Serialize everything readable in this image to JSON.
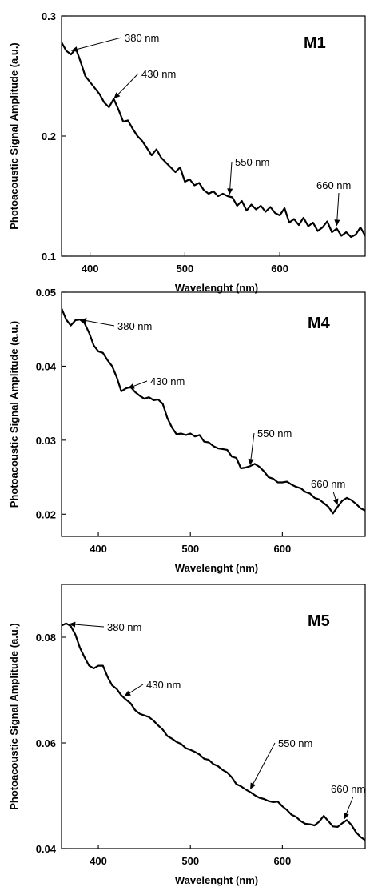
{
  "chart_data": [
    {
      "type": "line",
      "panel_label": "M1",
      "xlabel": "Wavelenght (nm)",
      "ylabel": "Photoacoustic Signal Amplitude (a.u.)",
      "xlim": [
        370,
        690
      ],
      "ylim": [
        0.1,
        0.3
      ],
      "xticks": [
        400,
        500,
        600
      ],
      "yticks": [
        0.1,
        0.2,
        0.3
      ],
      "ytick_labels": [
        "0.1",
        "0.2",
        "0.3"
      ],
      "series": [
        {
          "x": [
            370,
            375,
            380,
            385,
            390,
            395,
            400,
            405,
            410,
            415,
            420,
            425,
            430,
            435,
            440,
            445,
            450,
            455,
            460,
            465,
            470,
            475,
            480,
            485,
            490,
            495,
            500,
            505,
            510,
            515,
            520,
            525,
            530,
            535,
            540,
            545,
            550,
            555,
            560,
            565,
            570,
            575,
            580,
            585,
            590,
            595,
            600,
            605,
            610,
            615,
            620,
            625,
            630,
            635,
            640,
            645,
            650,
            655,
            660,
            665,
            670,
            675,
            680,
            685,
            690
          ],
          "y": [
            0.278,
            0.271,
            0.268,
            0.273,
            0.262,
            0.25,
            0.245,
            0.24,
            0.235,
            0.228,
            0.224,
            0.231,
            0.222,
            0.212,
            0.213,
            0.206,
            0.2,
            0.196,
            0.19,
            0.184,
            0.189,
            0.182,
            0.178,
            0.174,
            0.17,
            0.174,
            0.162,
            0.164,
            0.159,
            0.161,
            0.155,
            0.152,
            0.154,
            0.15,
            0.152,
            0.15,
            0.149,
            0.142,
            0.146,
            0.138,
            0.143,
            0.139,
            0.142,
            0.137,
            0.141,
            0.136,
            0.134,
            0.14,
            0.128,
            0.131,
            0.126,
            0.132,
            0.125,
            0.128,
            0.121,
            0.124,
            0.129,
            0.12,
            0.123,
            0.117,
            0.12,
            0.116,
            0.118,
            0.124,
            0.117
          ]
        }
      ],
      "annotations": [
        {
          "text": "380 nm",
          "x": 380,
          "y": 0.271
        },
        {
          "text": "430 nm",
          "x": 425,
          "y": 0.231
        },
        {
          "text": "550 nm",
          "x": 547,
          "y": 0.151
        },
        {
          "text": "660 nm",
          "x": 660,
          "y": 0.125
        }
      ]
    },
    {
      "type": "line",
      "panel_label": "M4",
      "xlabel": "Wavelenght (nm)",
      "ylabel": "Photoacoustic Signal Amplitude (a.u.)",
      "xlim": [
        360,
        690
      ],
      "ylim": [
        0.017,
        0.05
      ],
      "xticks": [
        400,
        500,
        600
      ],
      "yticks": [
        0.02,
        0.03,
        0.04,
        0.05
      ],
      "ytick_labels": [
        "0.02",
        "0.03",
        "0.04",
        "0.05"
      ],
      "series": [
        {
          "x": [
            360,
            365,
            370,
            375,
            380,
            385,
            390,
            395,
            400,
            405,
            410,
            415,
            420,
            425,
            430,
            435,
            440,
            445,
            450,
            455,
            460,
            465,
            470,
            475,
            480,
            485,
            490,
            495,
            500,
            505,
            510,
            515,
            520,
            525,
            530,
            535,
            540,
            545,
            550,
            555,
            560,
            565,
            570,
            575,
            580,
            585,
            590,
            595,
            600,
            605,
            610,
            615,
            620,
            625,
            630,
            635,
            640,
            645,
            650,
            655,
            660,
            665,
            670,
            675,
            680,
            685,
            690
          ],
          "y": [
            0.0478,
            0.0463,
            0.0455,
            0.0462,
            0.0463,
            0.0458,
            0.0445,
            0.0428,
            0.042,
            0.0418,
            0.0408,
            0.04,
            0.0385,
            0.0366,
            0.037,
            0.0372,
            0.0365,
            0.036,
            0.0356,
            0.0358,
            0.0354,
            0.0355,
            0.0349,
            0.033,
            0.0317,
            0.0308,
            0.0309,
            0.0307,
            0.0309,
            0.0305,
            0.0307,
            0.0298,
            0.0297,
            0.0292,
            0.0289,
            0.0288,
            0.0287,
            0.0278,
            0.0276,
            0.0262,
            0.0263,
            0.0265,
            0.0268,
            0.0264,
            0.0258,
            0.025,
            0.0248,
            0.0243,
            0.0243,
            0.0244,
            0.024,
            0.0237,
            0.0235,
            0.023,
            0.0228,
            0.0222,
            0.022,
            0.0215,
            0.021,
            0.0201,
            0.021,
            0.0218,
            0.0222,
            0.0219,
            0.0214,
            0.0208,
            0.0205
          ]
        }
      ],
      "annotations": [
        {
          "text": "380 nm",
          "x": 380,
          "y": 0.0463
        },
        {
          "text": "430 nm",
          "x": 432,
          "y": 0.037
        },
        {
          "text": "550 nm",
          "x": 565,
          "y": 0.0266
        },
        {
          "text": "660 nm",
          "x": 660,
          "y": 0.0212
        }
      ]
    },
    {
      "type": "line",
      "panel_label": "M5",
      "xlabel": "Wavelenght (nm)",
      "ylabel": "Photoacoustic Signal Amplitude (a.u.)",
      "xlim": [
        360,
        690
      ],
      "ylim": [
        0.04,
        0.09
      ],
      "xticks": [
        400,
        500,
        600
      ],
      "yticks": [
        0.04,
        0.06,
        0.08
      ],
      "ytick_labels": [
        "0.04",
        "0.06",
        "0.08"
      ],
      "series": [
        {
          "x": [
            360,
            365,
            370,
            375,
            380,
            385,
            390,
            395,
            400,
            405,
            410,
            415,
            420,
            425,
            430,
            435,
            440,
            445,
            450,
            455,
            460,
            465,
            470,
            475,
            480,
            485,
            490,
            495,
            500,
            505,
            510,
            515,
            520,
            525,
            530,
            535,
            540,
            545,
            550,
            555,
            560,
            565,
            570,
            575,
            580,
            585,
            590,
            595,
            600,
            605,
            610,
            615,
            620,
            625,
            630,
            635,
            640,
            645,
            650,
            655,
            660,
            665,
            670,
            675,
            680,
            685,
            690
          ],
          "y": [
            0.0822,
            0.0826,
            0.0821,
            0.0805,
            0.078,
            0.0762,
            0.0746,
            0.0741,
            0.0746,
            0.0746,
            0.0725,
            0.0709,
            0.0702,
            0.069,
            0.0682,
            0.0675,
            0.0662,
            0.0655,
            0.0652,
            0.0649,
            0.0642,
            0.0633,
            0.0625,
            0.0613,
            0.0608,
            0.0602,
            0.0598,
            0.059,
            0.0587,
            0.0583,
            0.0578,
            0.057,
            0.0568,
            0.056,
            0.0556,
            0.0549,
            0.0544,
            0.0535,
            0.0522,
            0.0518,
            0.0512,
            0.0507,
            0.0501,
            0.0496,
            0.0494,
            0.049,
            0.0488,
            0.0489,
            0.048,
            0.0473,
            0.0464,
            0.046,
            0.0452,
            0.0447,
            0.0446,
            0.0444,
            0.0451,
            0.0462,
            0.0452,
            0.0442,
            0.0441,
            0.0448,
            0.0454,
            0.0445,
            0.0431,
            0.0422,
            0.0416
          ]
        }
      ],
      "annotations": [
        {
          "text": "380 nm",
          "x": 368,
          "y": 0.0825
        },
        {
          "text": "430 nm",
          "x": 428,
          "y": 0.0688
        },
        {
          "text": "550 nm",
          "x": 565,
          "y": 0.0512
        },
        {
          "text": "660 nm",
          "x": 667,
          "y": 0.0455
        }
      ]
    }
  ]
}
